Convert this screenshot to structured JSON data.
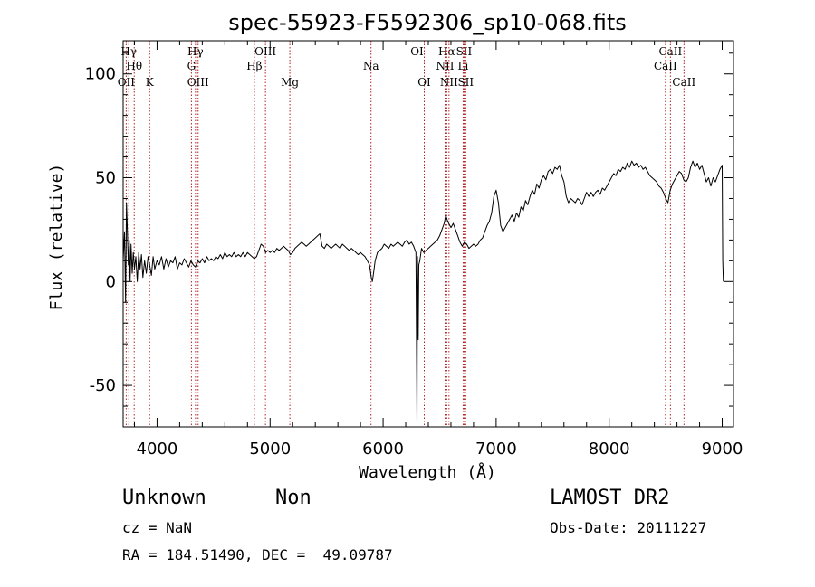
{
  "chart_data": {
    "type": "line",
    "title": "spec-55923-F5592306_sp10-068.fits",
    "xlabel": "Wavelength (Å)",
    "ylabel": "Flux (relative)",
    "xlim": [
      3700,
      9100
    ],
    "ylim": [
      -70,
      116
    ],
    "xticks": [
      4000,
      5000,
      6000,
      7000,
      8000,
      9000
    ],
    "yticks": [
      -50,
      0,
      50,
      100
    ],
    "grid": false,
    "series": [
      {
        "points": [
          [
            3700,
            10
          ],
          [
            3712,
            24
          ],
          [
            3722,
            -10
          ],
          [
            3730,
            38
          ],
          [
            3738,
            24
          ],
          [
            3746,
            8
          ],
          [
            3754,
            20
          ],
          [
            3762,
            0
          ],
          [
            3770,
            18
          ],
          [
            3780,
            4
          ],
          [
            3790,
            14
          ],
          [
            3800,
            6
          ],
          [
            3812,
            12
          ],
          [
            3825,
            0
          ],
          [
            3838,
            14
          ],
          [
            3850,
            6
          ],
          [
            3862,
            13
          ],
          [
            3875,
            2
          ],
          [
            3890,
            10
          ],
          [
            3905,
            4
          ],
          [
            3920,
            12
          ],
          [
            3935,
            8
          ],
          [
            3950,
            3
          ],
          [
            3965,
            12
          ],
          [
            3980,
            6
          ],
          [
            4000,
            10
          ],
          [
            4020,
            8
          ],
          [
            4040,
            12
          ],
          [
            4060,
            6
          ],
          [
            4080,
            11
          ],
          [
            4100,
            7
          ],
          [
            4120,
            10
          ],
          [
            4140,
            9
          ],
          [
            4160,
            12
          ],
          [
            4180,
            6
          ],
          [
            4200,
            9
          ],
          [
            4220,
            8
          ],
          [
            4240,
            11
          ],
          [
            4260,
            9
          ],
          [
            4280,
            7
          ],
          [
            4300,
            10
          ],
          [
            4320,
            8
          ],
          [
            4340,
            7
          ],
          [
            4360,
            10
          ],
          [
            4380,
            9
          ],
          [
            4400,
            11
          ],
          [
            4420,
            9
          ],
          [
            4440,
            12
          ],
          [
            4460,
            10
          ],
          [
            4480,
            11
          ],
          [
            4500,
            10
          ],
          [
            4520,
            12
          ],
          [
            4540,
            11
          ],
          [
            4560,
            13
          ],
          [
            4580,
            11
          ],
          [
            4600,
            14
          ],
          [
            4620,
            12
          ],
          [
            4640,
            13
          ],
          [
            4660,
            12
          ],
          [
            4680,
            14
          ],
          [
            4700,
            12
          ],
          [
            4720,
            13
          ],
          [
            4740,
            12
          ],
          [
            4760,
            14
          ],
          [
            4780,
            12
          ],
          [
            4800,
            14
          ],
          [
            4820,
            13
          ],
          [
            4840,
            12
          ],
          [
            4860,
            11
          ],
          [
            4880,
            12
          ],
          [
            4900,
            15
          ],
          [
            4920,
            18
          ],
          [
            4940,
            17
          ],
          [
            4960,
            14
          ],
          [
            4980,
            15
          ],
          [
            5000,
            14
          ],
          [
            5020,
            15
          ],
          [
            5040,
            14
          ],
          [
            5060,
            16
          ],
          [
            5080,
            15
          ],
          [
            5100,
            16
          ],
          [
            5120,
            17
          ],
          [
            5140,
            16
          ],
          [
            5160,
            15
          ],
          [
            5180,
            13
          ],
          [
            5200,
            14
          ],
          [
            5220,
            16
          ],
          [
            5240,
            17
          ],
          [
            5260,
            18
          ],
          [
            5280,
            19
          ],
          [
            5300,
            18
          ],
          [
            5320,
            17
          ],
          [
            5340,
            18
          ],
          [
            5360,
            19
          ],
          [
            5380,
            20
          ],
          [
            5400,
            21
          ],
          [
            5420,
            22
          ],
          [
            5440,
            23
          ],
          [
            5460,
            17
          ],
          [
            5480,
            16
          ],
          [
            5500,
            18
          ],
          [
            5520,
            17
          ],
          [
            5540,
            16
          ],
          [
            5560,
            17
          ],
          [
            5580,
            18
          ],
          [
            5600,
            17
          ],
          [
            5620,
            16
          ],
          [
            5640,
            18
          ],
          [
            5660,
            17
          ],
          [
            5680,
            16
          ],
          [
            5700,
            15
          ],
          [
            5720,
            16
          ],
          [
            5740,
            15
          ],
          [
            5760,
            14
          ],
          [
            5780,
            13
          ],
          [
            5800,
            14
          ],
          [
            5820,
            13
          ],
          [
            5840,
            12
          ],
          [
            5860,
            10
          ],
          [
            5880,
            8
          ],
          [
            5895,
            2
          ],
          [
            5905,
            0
          ],
          [
            5915,
            4
          ],
          [
            5930,
            10
          ],
          [
            5950,
            14
          ],
          [
            5970,
            15
          ],
          [
            5990,
            16
          ],
          [
            6010,
            18
          ],
          [
            6030,
            17
          ],
          [
            6050,
            16
          ],
          [
            6070,
            18
          ],
          [
            6090,
            17
          ],
          [
            6110,
            18
          ],
          [
            6130,
            19
          ],
          [
            6150,
            18
          ],
          [
            6170,
            17
          ],
          [
            6190,
            19
          ],
          [
            6210,
            20
          ],
          [
            6230,
            18
          ],
          [
            6250,
            19
          ],
          [
            6270,
            17
          ],
          [
            6290,
            14
          ],
          [
            6300,
            -68
          ],
          [
            6304,
            12
          ],
          [
            6310,
            -28
          ],
          [
            6316,
            8
          ],
          [
            6325,
            10
          ],
          [
            6340,
            16
          ],
          [
            6360,
            14
          ],
          [
            6380,
            15
          ],
          [
            6400,
            16
          ],
          [
            6420,
            17
          ],
          [
            6440,
            18
          ],
          [
            6460,
            19
          ],
          [
            6480,
            20
          ],
          [
            6500,
            22
          ],
          [
            6520,
            25
          ],
          [
            6540,
            28
          ],
          [
            6555,
            32
          ],
          [
            6565,
            30
          ],
          [
            6580,
            28
          ],
          [
            6600,
            26
          ],
          [
            6620,
            28
          ],
          [
            6640,
            25
          ],
          [
            6660,
            22
          ],
          [
            6680,
            19
          ],
          [
            6700,
            17
          ],
          [
            6720,
            19
          ],
          [
            6740,
            18
          ],
          [
            6760,
            16
          ],
          [
            6780,
            17
          ],
          [
            6800,
            18
          ],
          [
            6820,
            17
          ],
          [
            6840,
            18
          ],
          [
            6860,
            20
          ],
          [
            6880,
            21
          ],
          [
            6900,
            24
          ],
          [
            6920,
            27
          ],
          [
            6940,
            29
          ],
          [
            6960,
            33
          ],
          [
            6980,
            41
          ],
          [
            7000,
            44
          ],
          [
            7020,
            38
          ],
          [
            7040,
            27
          ],
          [
            7060,
            24
          ],
          [
            7080,
            26
          ],
          [
            7100,
            28
          ],
          [
            7120,
            30
          ],
          [
            7140,
            32
          ],
          [
            7160,
            29
          ],
          [
            7180,
            33
          ],
          [
            7200,
            31
          ],
          [
            7220,
            36
          ],
          [
            7240,
            34
          ],
          [
            7260,
            39
          ],
          [
            7280,
            37
          ],
          [
            7300,
            41
          ],
          [
            7320,
            44
          ],
          [
            7340,
            42
          ],
          [
            7360,
            47
          ],
          [
            7380,
            45
          ],
          [
            7400,
            49
          ],
          [
            7420,
            51
          ],
          [
            7440,
            49
          ],
          [
            7460,
            53
          ],
          [
            7480,
            54
          ],
          [
            7500,
            52
          ],
          [
            7520,
            55
          ],
          [
            7540,
            54
          ],
          [
            7560,
            56
          ],
          [
            7580,
            51
          ],
          [
            7600,
            48
          ],
          [
            7620,
            41
          ],
          [
            7640,
            38
          ],
          [
            7660,
            40
          ],
          [
            7680,
            39
          ],
          [
            7700,
            38
          ],
          [
            7720,
            40
          ],
          [
            7740,
            39
          ],
          [
            7760,
            37
          ],
          [
            7780,
            40
          ],
          [
            7800,
            43
          ],
          [
            7820,
            41
          ],
          [
            7840,
            43
          ],
          [
            7860,
            41
          ],
          [
            7880,
            43
          ],
          [
            7900,
            44
          ],
          [
            7920,
            42
          ],
          [
            7940,
            45
          ],
          [
            7960,
            44
          ],
          [
            7980,
            46
          ],
          [
            8000,
            48
          ],
          [
            8020,
            50
          ],
          [
            8040,
            52
          ],
          [
            8060,
            51
          ],
          [
            8080,
            54
          ],
          [
            8100,
            53
          ],
          [
            8120,
            55
          ],
          [
            8140,
            54
          ],
          [
            8160,
            57
          ],
          [
            8180,
            55
          ],
          [
            8200,
            58
          ],
          [
            8220,
            56
          ],
          [
            8240,
            57
          ],
          [
            8260,
            55
          ],
          [
            8280,
            56
          ],
          [
            8300,
            54
          ],
          [
            8320,
            55
          ],
          [
            8340,
            53
          ],
          [
            8360,
            51
          ],
          [
            8380,
            50
          ],
          [
            8400,
            49
          ],
          [
            8420,
            48
          ],
          [
            8440,
            46
          ],
          [
            8460,
            45
          ],
          [
            8480,
            43
          ],
          [
            8500,
            40
          ],
          [
            8520,
            38
          ],
          [
            8540,
            44
          ],
          [
            8560,
            47
          ],
          [
            8580,
            49
          ],
          [
            8600,
            51
          ],
          [
            8620,
            53
          ],
          [
            8640,
            52
          ],
          [
            8660,
            49
          ],
          [
            8680,
            48
          ],
          [
            8700,
            50
          ],
          [
            8720,
            55
          ],
          [
            8740,
            58
          ],
          [
            8760,
            55
          ],
          [
            8780,
            57
          ],
          [
            8800,
            54
          ],
          [
            8820,
            56
          ],
          [
            8840,
            52
          ],
          [
            8860,
            48
          ],
          [
            8880,
            50
          ],
          [
            8900,
            46
          ],
          [
            8920,
            50
          ],
          [
            8940,
            48
          ],
          [
            8960,
            51
          ],
          [
            8980,
            54
          ],
          [
            9000,
            56
          ],
          [
            9005,
            10
          ],
          [
            9010,
            0
          ]
        ]
      }
    ],
    "lines": [
      {
        "name": "Hγ",
        "x": 3750,
        "row": 0
      },
      {
        "name": "Hθ",
        "x": 3798,
        "row": 1
      },
      {
        "name": "OII",
        "x": 3727,
        "row": 2
      },
      {
        "name": "K",
        "x": 3934,
        "row": 2
      },
      {
        "name": "Hγ",
        "x": 4340,
        "row": 0
      },
      {
        "name": "G",
        "x": 4304,
        "row": 1
      },
      {
        "name": "OIII",
        "x": 4363,
        "row": 2
      },
      {
        "name": "OIII",
        "x": 4959,
        "row": 0
      },
      {
        "name": "Hβ",
        "x": 4861,
        "row": 1
      },
      {
        "name": "Mg",
        "x": 5175,
        "row": 2
      },
      {
        "name": "Na",
        "x": 5893,
        "row": 1
      },
      {
        "name": "OI",
        "x": 6300,
        "row": 0
      },
      {
        "name": "OI",
        "x": 6364,
        "row": 2
      },
      {
        "name": "Hα",
        "x": 6563,
        "row": 0
      },
      {
        "name": "NII",
        "x": 6548,
        "row": 1
      },
      {
        "name": "NII",
        "x": 6583,
        "row": 2
      },
      {
        "name": "SII",
        "x": 6716,
        "row": 0
      },
      {
        "name": "Li",
        "x": 6708,
        "row": 1
      },
      {
        "name": "SII",
        "x": 6731,
        "row": 2
      },
      {
        "name": "CaII",
        "x": 8542,
        "row": 0
      },
      {
        "name": "CaII",
        "x": 8498,
        "row": 1
      },
      {
        "name": "CaII",
        "x": 8662,
        "row": 2
      }
    ]
  },
  "info": {
    "object_class": "Unknown",
    "object_subclass": "Non",
    "survey": "LAMOST DR2",
    "cz": "cz = NaN",
    "obs_date": "Obs-Date: 20111227",
    "coords": "RA = 184.51490, DEC =  49.09787"
  },
  "colors": {
    "spectrum": "#000000",
    "line_markers": "#b22222"
  }
}
